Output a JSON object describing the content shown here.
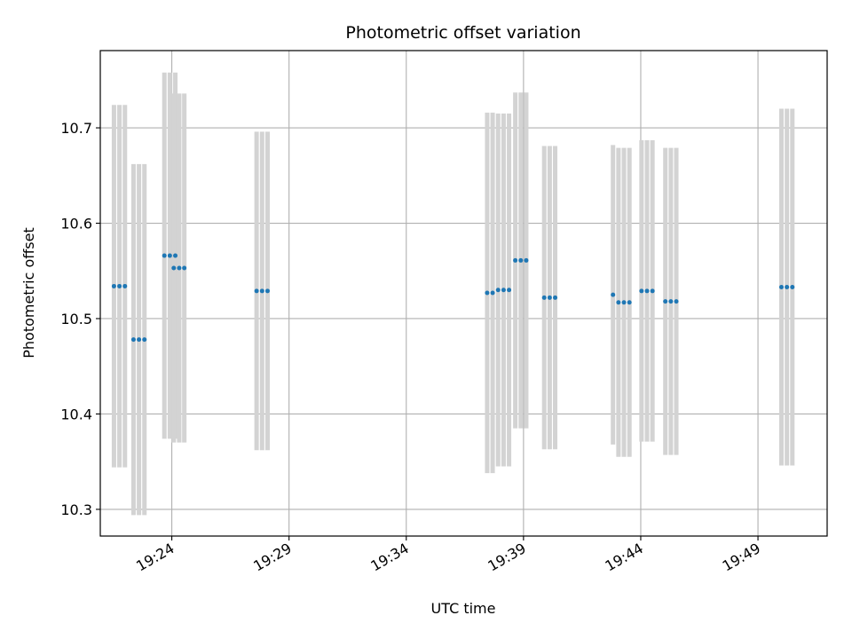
{
  "chart_data": {
    "type": "scatter",
    "title": "Photometric offset variation",
    "xlabel": "UTC time",
    "ylabel": "Photometric offset",
    "x_ticks": [
      "19:24",
      "19:29",
      "19:34",
      "19:39",
      "19:44",
      "19:49"
    ],
    "x_tick_minutes": [
      1164,
      1169,
      1174,
      1179,
      1184,
      1189
    ],
    "xlim_minutes": [
      1160.95,
      1191.95
    ],
    "y_ticks": [
      "10.3",
      "10.4",
      "10.5",
      "10.6",
      "10.7"
    ],
    "ylim": [
      10.272,
      10.781
    ],
    "grid": true,
    "marker_color": "#1f77b4",
    "errorbar_color": "#d3d3d3",
    "points": [
      {
        "t": "19:21:32",
        "y": 10.534,
        "err": 0.19
      },
      {
        "t": "19:21:46",
        "y": 10.534,
        "err": 0.19
      },
      {
        "t": "19:22:00",
        "y": 10.534,
        "err": 0.19
      },
      {
        "t": "19:22:22",
        "y": 10.478,
        "err": 0.184
      },
      {
        "t": "19:22:36",
        "y": 10.478,
        "err": 0.184
      },
      {
        "t": "19:22:50",
        "y": 10.478,
        "err": 0.184
      },
      {
        "t": "19:23:41",
        "y": 10.566,
        "err": 0.192
      },
      {
        "t": "19:23:55",
        "y": 10.566,
        "err": 0.192
      },
      {
        "t": "19:24:09",
        "y": 10.566,
        "err": 0.192
      },
      {
        "t": "19:24:05",
        "y": 10.553,
        "err": 0.183
      },
      {
        "t": "19:24:19",
        "y": 10.553,
        "err": 0.183
      },
      {
        "t": "19:24:32",
        "y": 10.553,
        "err": 0.183
      },
      {
        "t": "19:27:37",
        "y": 10.529,
        "err": 0.167
      },
      {
        "t": "19:27:51",
        "y": 10.529,
        "err": 0.167
      },
      {
        "t": "19:28:05",
        "y": 10.529,
        "err": 0.167
      },
      {
        "t": "19:37:27",
        "y": 10.527,
        "err": 0.189
      },
      {
        "t": "19:37:41",
        "y": 10.527,
        "err": 0.189
      },
      {
        "t": "19:37:55",
        "y": 10.53,
        "err": 0.185
      },
      {
        "t": "19:38:09",
        "y": 10.53,
        "err": 0.185
      },
      {
        "t": "19:38:23",
        "y": 10.53,
        "err": 0.185
      },
      {
        "t": "19:38:39",
        "y": 10.561,
        "err": 0.176
      },
      {
        "t": "19:38:53",
        "y": 10.561,
        "err": 0.176
      },
      {
        "t": "19:39:07",
        "y": 10.561,
        "err": 0.176
      },
      {
        "t": "19:39:53",
        "y": 10.522,
        "err": 0.159
      },
      {
        "t": "19:40:07",
        "y": 10.522,
        "err": 0.159
      },
      {
        "t": "19:40:21",
        "y": 10.522,
        "err": 0.159
      },
      {
        "t": "19:42:49",
        "y": 10.525,
        "err": 0.157
      },
      {
        "t": "19:43:03",
        "y": 10.517,
        "err": 0.162
      },
      {
        "t": "19:43:17",
        "y": 10.517,
        "err": 0.162
      },
      {
        "t": "19:43:31",
        "y": 10.517,
        "err": 0.162
      },
      {
        "t": "19:44:02",
        "y": 10.529,
        "err": 0.158
      },
      {
        "t": "19:44:16",
        "y": 10.529,
        "err": 0.158
      },
      {
        "t": "19:44:30",
        "y": 10.529,
        "err": 0.158
      },
      {
        "t": "19:45:03",
        "y": 10.518,
        "err": 0.161
      },
      {
        "t": "19:45:17",
        "y": 10.518,
        "err": 0.161
      },
      {
        "t": "19:45:31",
        "y": 10.518,
        "err": 0.161
      },
      {
        "t": "19:50:00",
        "y": 10.533,
        "err": 0.187
      },
      {
        "t": "19:50:14",
        "y": 10.533,
        "err": 0.187
      },
      {
        "t": "19:50:28",
        "y": 10.533,
        "err": 0.187
      }
    ]
  }
}
